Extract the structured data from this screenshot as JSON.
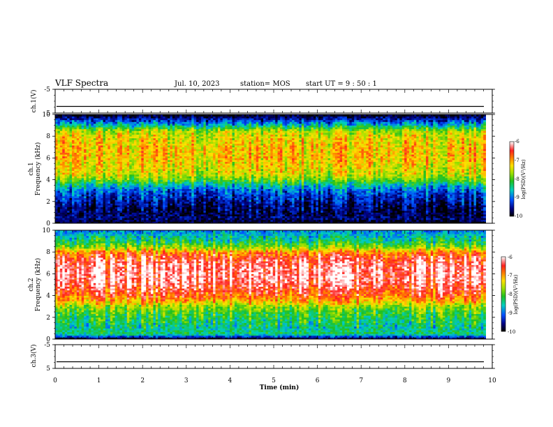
{
  "header": {
    "title": "VLF Spectra",
    "date": "Jul. 10, 2023",
    "station": "station= MOS",
    "start": "start UT =  9 : 50 : 1"
  },
  "chart_data": [
    {
      "type": "line",
      "name": "ch1-waveform",
      "ylabel": "ch.1(V)",
      "ylim": [
        -5,
        5
      ],
      "y_ticks": [
        "5",
        "-5"
      ],
      "xlim": [
        0,
        10
      ],
      "level": -2.2
    },
    {
      "type": "heatmap",
      "name": "ch1-spectrogram",
      "ylabel_channel": "ch.1",
      "ylabel": "Frequency (kHz)",
      "ylim": [
        0,
        10
      ],
      "y_ticks": [
        "0",
        "2",
        "4",
        "6",
        "8",
        "10"
      ],
      "xlim": [
        0,
        9.85
      ],
      "colorbar": {
        "label": "log(PSD)(V²/Hz)",
        "range": [
          -10,
          -6
        ],
        "ticks": [
          "-6",
          "-7",
          "-8",
          "-9",
          "-10"
        ]
      },
      "band_profile_khz": [
        0,
        0.5,
        1,
        1.5,
        2,
        2.5,
        3,
        3.5,
        4,
        4.5,
        5,
        5.5,
        6,
        6.5,
        7,
        7.5,
        8,
        8.5,
        9,
        9.5,
        10
      ],
      "band_profile_log_psd": [
        -10,
        -9.6,
        -9.8,
        -9.7,
        -9.5,
        -9.3,
        -9.1,
        -8.6,
        -7.9,
        -7.5,
        -7.4,
        -7.3,
        -7.2,
        -7.2,
        -7.2,
        -7.3,
        -7.4,
        -7.6,
        -8.6,
        -9.3,
        -10
      ]
    },
    {
      "type": "heatmap",
      "name": "ch2-spectrogram",
      "ylabel_channel": "ch.2",
      "ylabel": "Frequency (kHz)",
      "ylim": [
        0,
        10
      ],
      "y_ticks": [
        "0",
        "2",
        "4",
        "6",
        "8",
        "10"
      ],
      "xlim": [
        0,
        9.85
      ],
      "colorbar": {
        "label": "log(PSD)(V²/Hz)",
        "range": [
          -10,
          -6
        ],
        "ticks": [
          "-6",
          "-7",
          "-8",
          "-9",
          "-10"
        ]
      },
      "band_profile_khz": [
        0,
        0.5,
        1,
        1.5,
        2,
        2.5,
        3,
        3.5,
        4,
        4.5,
        5,
        5.5,
        6,
        6.5,
        7,
        7.5,
        8,
        8.5,
        9,
        9.5,
        10
      ],
      "band_profile_log_psd": [
        -10,
        -8.3,
        -8.5,
        -8.3,
        -8.2,
        -8.0,
        -7.7,
        -7.1,
        -6.7,
        -6.5,
        -6.3,
        -6.2,
        -6.2,
        -6.2,
        -6.3,
        -6.5,
        -6.9,
        -7.8,
        -8.3,
        -8.6,
        -8.9
      ]
    },
    {
      "type": "line",
      "name": "ch3-waveform",
      "ylabel": "ch.3(V)",
      "ylim": [
        -5,
        5
      ],
      "y_ticks": [
        "5",
        "-5"
      ],
      "xlim": [
        0,
        10
      ],
      "level": -2.2
    }
  ],
  "xaxis": {
    "label": "Time (min)",
    "ticks": [
      "0",
      "1",
      "2",
      "3",
      "4",
      "5",
      "6",
      "7",
      "8",
      "9",
      "10"
    ],
    "range": [
      0,
      10
    ]
  }
}
